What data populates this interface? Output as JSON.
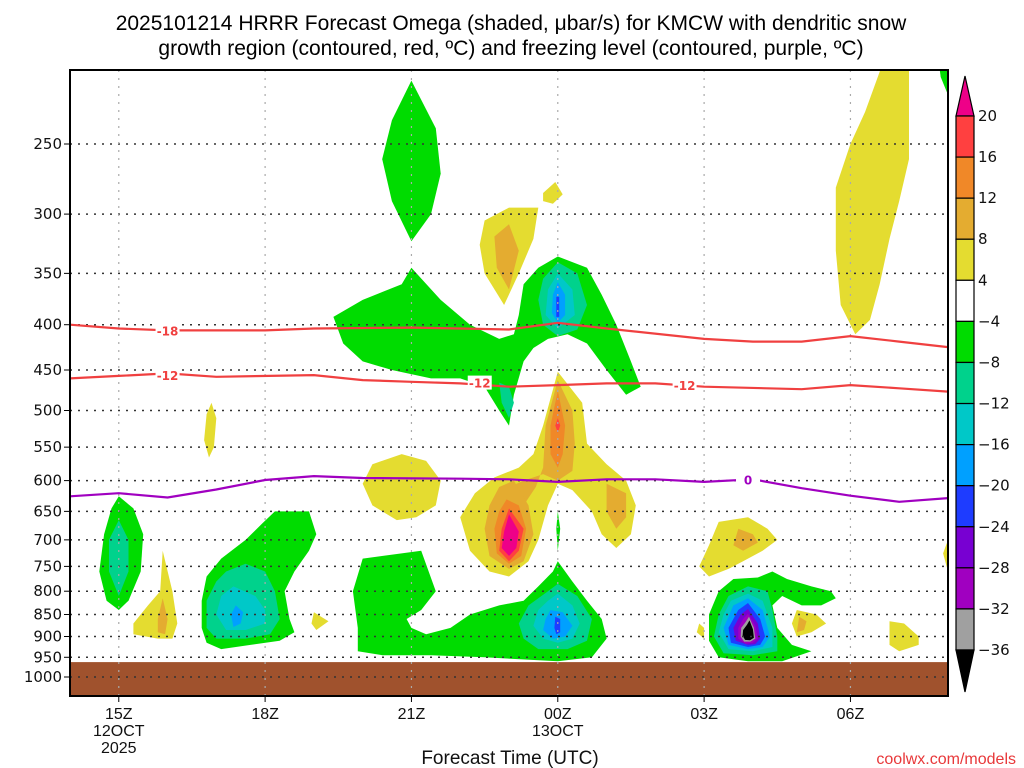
{
  "chart_data": {
    "type": "heatmap",
    "title_line1": "2025101214 HRRR Forecast Omega (shaded, μbar/s) for KMCW with dendritic snow",
    "title_line2": "growth region (contoured, red, ºC) and freezing level (contoured, purple, ºC)",
    "xlabel": "Forecast Time (UTC)",
    "ylabel": "",
    "credit": "coolwx.com/models",
    "x_range_hours": [
      0,
      18
    ],
    "x_origin": "14Z 12 OCT 2025",
    "y_axis": {
      "type": "log-pressure",
      "range_hpa": [
        200,
        1020
      ],
      "ticks": [
        250,
        300,
        350,
        400,
        450,
        500,
        550,
        600,
        650,
        700,
        750,
        800,
        850,
        900,
        950,
        1000
      ],
      "tick_labels": [
        "250",
        "300",
        "350",
        "400",
        "450",
        "500",
        "550",
        "600",
        "650",
        "700",
        "750",
        "800",
        "850",
        "900",
        "950",
        "1000"
      ],
      "grid": "dotted"
    },
    "x_ticks": [
      {
        "hour": 1,
        "label": "15Z",
        "sub1": "12OCT",
        "sub2": "2025"
      },
      {
        "hour": 4,
        "label": "18Z",
        "sub1": "",
        "sub2": ""
      },
      {
        "hour": 7,
        "label": "21Z",
        "sub1": "",
        "sub2": ""
      },
      {
        "hour": 10,
        "label": "00Z",
        "sub1": "13OCT",
        "sub2": ""
      },
      {
        "hour": 13,
        "label": "03Z",
        "sub1": "",
        "sub2": ""
      },
      {
        "hour": 16,
        "label": "06Z",
        "sub1": "",
        "sub2": ""
      }
    ],
    "colorbar": {
      "levels": [
        20,
        16,
        12,
        8,
        4,
        -4,
        -8,
        -12,
        -16,
        -20,
        -24,
        -28,
        -32,
        -36
      ],
      "labels": [
        "20",
        "16",
        "12",
        "8",
        "4",
        "−4",
        "−8",
        "−12",
        "−16",
        "−20",
        "−24",
        "−28",
        "−32",
        "−36"
      ],
      "colors": {
        "above_20": "#ee0088",
        "16_20": "#ff4040",
        "12_16": "#f08828",
        "8_12": "#e4ac30",
        "4_8": "#e4dc30",
        "m4_4": "#ffffff",
        "m8_m4": "#00dc00",
        "m12_m8": "#00d28c",
        "m16_m12": "#00c8c8",
        "m20_m16": "#00a0ff",
        "m24_m20": "#1e3cff",
        "m28_m24": "#7800d2",
        "m32_m28": "#a000c0",
        "m36_m32": "#a0a0a0",
        "below_m36": "#000000"
      }
    },
    "ground_color": "#a0522d",
    "ground_pressure_hpa": 962,
    "dgz_contours": [
      {
        "level": -18,
        "label": "-18",
        "color": "#f04040",
        "points": [
          [
            0,
            400
          ],
          [
            1,
            404
          ],
          [
            2,
            406
          ],
          [
            4,
            406
          ],
          [
            5,
            404
          ],
          [
            7,
            403
          ],
          [
            8,
            404
          ],
          [
            9,
            405
          ],
          [
            10,
            398
          ],
          [
            11,
            404
          ],
          [
            13,
            415
          ],
          [
            14,
            418
          ],
          [
            15,
            418
          ],
          [
            16,
            412
          ],
          [
            17,
            418
          ],
          [
            18,
            424
          ]
        ]
      },
      {
        "level": -12,
        "label": "-12",
        "color": "#f04040",
        "points": [
          [
            0,
            460
          ],
          [
            1,
            457
          ],
          [
            2,
            454
          ],
          [
            3,
            458
          ],
          [
            5,
            456
          ],
          [
            6,
            462
          ],
          [
            7,
            464
          ],
          [
            8,
            466
          ],
          [
            9,
            470
          ],
          [
            10,
            468
          ],
          [
            11,
            466
          ],
          [
            12,
            466
          ],
          [
            13,
            470
          ],
          [
            15,
            473
          ],
          [
            16,
            468
          ],
          [
            17,
            472
          ],
          [
            18,
            476
          ]
        ]
      }
    ],
    "freezing_contour": {
      "level": 0,
      "label": "0",
      "color": "#a000c0",
      "points": [
        [
          0,
          625
        ],
        [
          1,
          620
        ],
        [
          2,
          627
        ],
        [
          3,
          614
        ],
        [
          4,
          599
        ],
        [
          5,
          593
        ],
        [
          6,
          596
        ],
        [
          8,
          597
        ],
        [
          9,
          598
        ],
        [
          10,
          602
        ],
        [
          11,
          598
        ],
        [
          12,
          598
        ],
        [
          13,
          602
        ],
        [
          14,
          598
        ],
        [
          15,
          612
        ],
        [
          16,
          624
        ],
        [
          17,
          634
        ],
        [
          18,
          628
        ]
      ]
    },
    "omega_regions_description": [
      {
        "center_hour": 10.0,
        "center_hpa": 860,
        "min_value": -24,
        "sign": "upward"
      },
      {
        "center_hour": 13.9,
        "center_hpa": 880,
        "min_value": -36,
        "sign": "upward"
      },
      {
        "center_hour": 3.6,
        "center_hpa": 830,
        "min_value": -20,
        "sign": "upward"
      },
      {
        "center_hour": 10.0,
        "center_hpa": 355,
        "min_value": -24,
        "sign": "upward"
      },
      {
        "center_hour": 1.0,
        "center_hpa": 720,
        "min_value": -12,
        "sign": "upward"
      },
      {
        "center_hour": 8.9,
        "center_hpa": 690,
        "max_value": 24,
        "sign": "downward"
      },
      {
        "center_hour": 10.0,
        "center_hpa": 520,
        "max_value": 20,
        "sign": "downward"
      }
    ]
  }
}
